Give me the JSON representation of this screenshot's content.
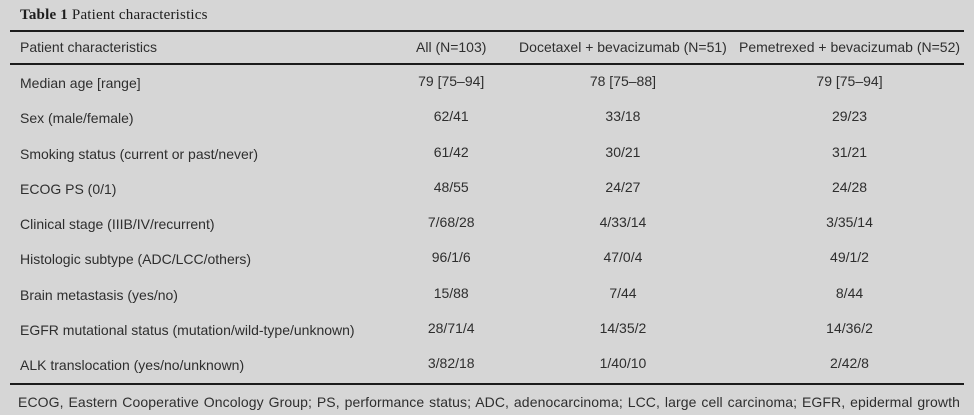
{
  "title": {
    "label": "Table 1",
    "caption": " Patient characteristics"
  },
  "table": {
    "columns": [
      "Patient characteristics",
      "All (N=103)",
      "Docetaxel + bevacizumab (N=51)",
      "Pemetrexed + bevacizumab (N=52)"
    ],
    "rows": [
      {
        "label": "Median age [range]",
        "all": "79 [75–94]",
        "docetaxel": "78 [75–88]",
        "pemetrexed": "79 [75–94]"
      },
      {
        "label": "Sex (male/female)",
        "all": "62/41",
        "docetaxel": "33/18",
        "pemetrexed": "29/23"
      },
      {
        "label": "Smoking status (current or past/never)",
        "all": "61/42",
        "docetaxel": "30/21",
        "pemetrexed": "31/21"
      },
      {
        "label": "ECOG PS (0/1)",
        "all": "48/55",
        "docetaxel": "24/27",
        "pemetrexed": "24/28"
      },
      {
        "label": "Clinical stage (IIIB/IV/recurrent)",
        "all": "7/68/28",
        "docetaxel": "4/33/14",
        "pemetrexed": "3/35/14"
      },
      {
        "label": "Histologic subtype (ADC/LCC/others)",
        "all": "96/1/6",
        "docetaxel": "47/0/4",
        "pemetrexed": "49/1/2"
      },
      {
        "label": "Brain metastasis (yes/no)",
        "all": "15/88",
        "docetaxel": "7/44",
        "pemetrexed": "8/44"
      },
      {
        "label": "EGFR mutational status (mutation/wild-type/unknown)",
        "all": "28/71/4",
        "docetaxel": "14/35/2",
        "pemetrexed": "14/36/2"
      },
      {
        "label": "ALK translocation (yes/no/unknown)",
        "all": "3/82/18",
        "docetaxel": "1/40/10",
        "pemetrexed": "2/42/8"
      }
    ]
  },
  "footnote": "ECOG, Eastern Cooperative Oncology Group; PS, performance status; ADC, adenocarcinoma; LCC, large cell carcinoma; EGFR, epidermal growth factor receptor; ALK anaplastic lymphoma kinase.",
  "colors": {
    "page_background": "#d6d6d6",
    "text": "#2e2e2e",
    "rule": "#1c1c1c"
  }
}
